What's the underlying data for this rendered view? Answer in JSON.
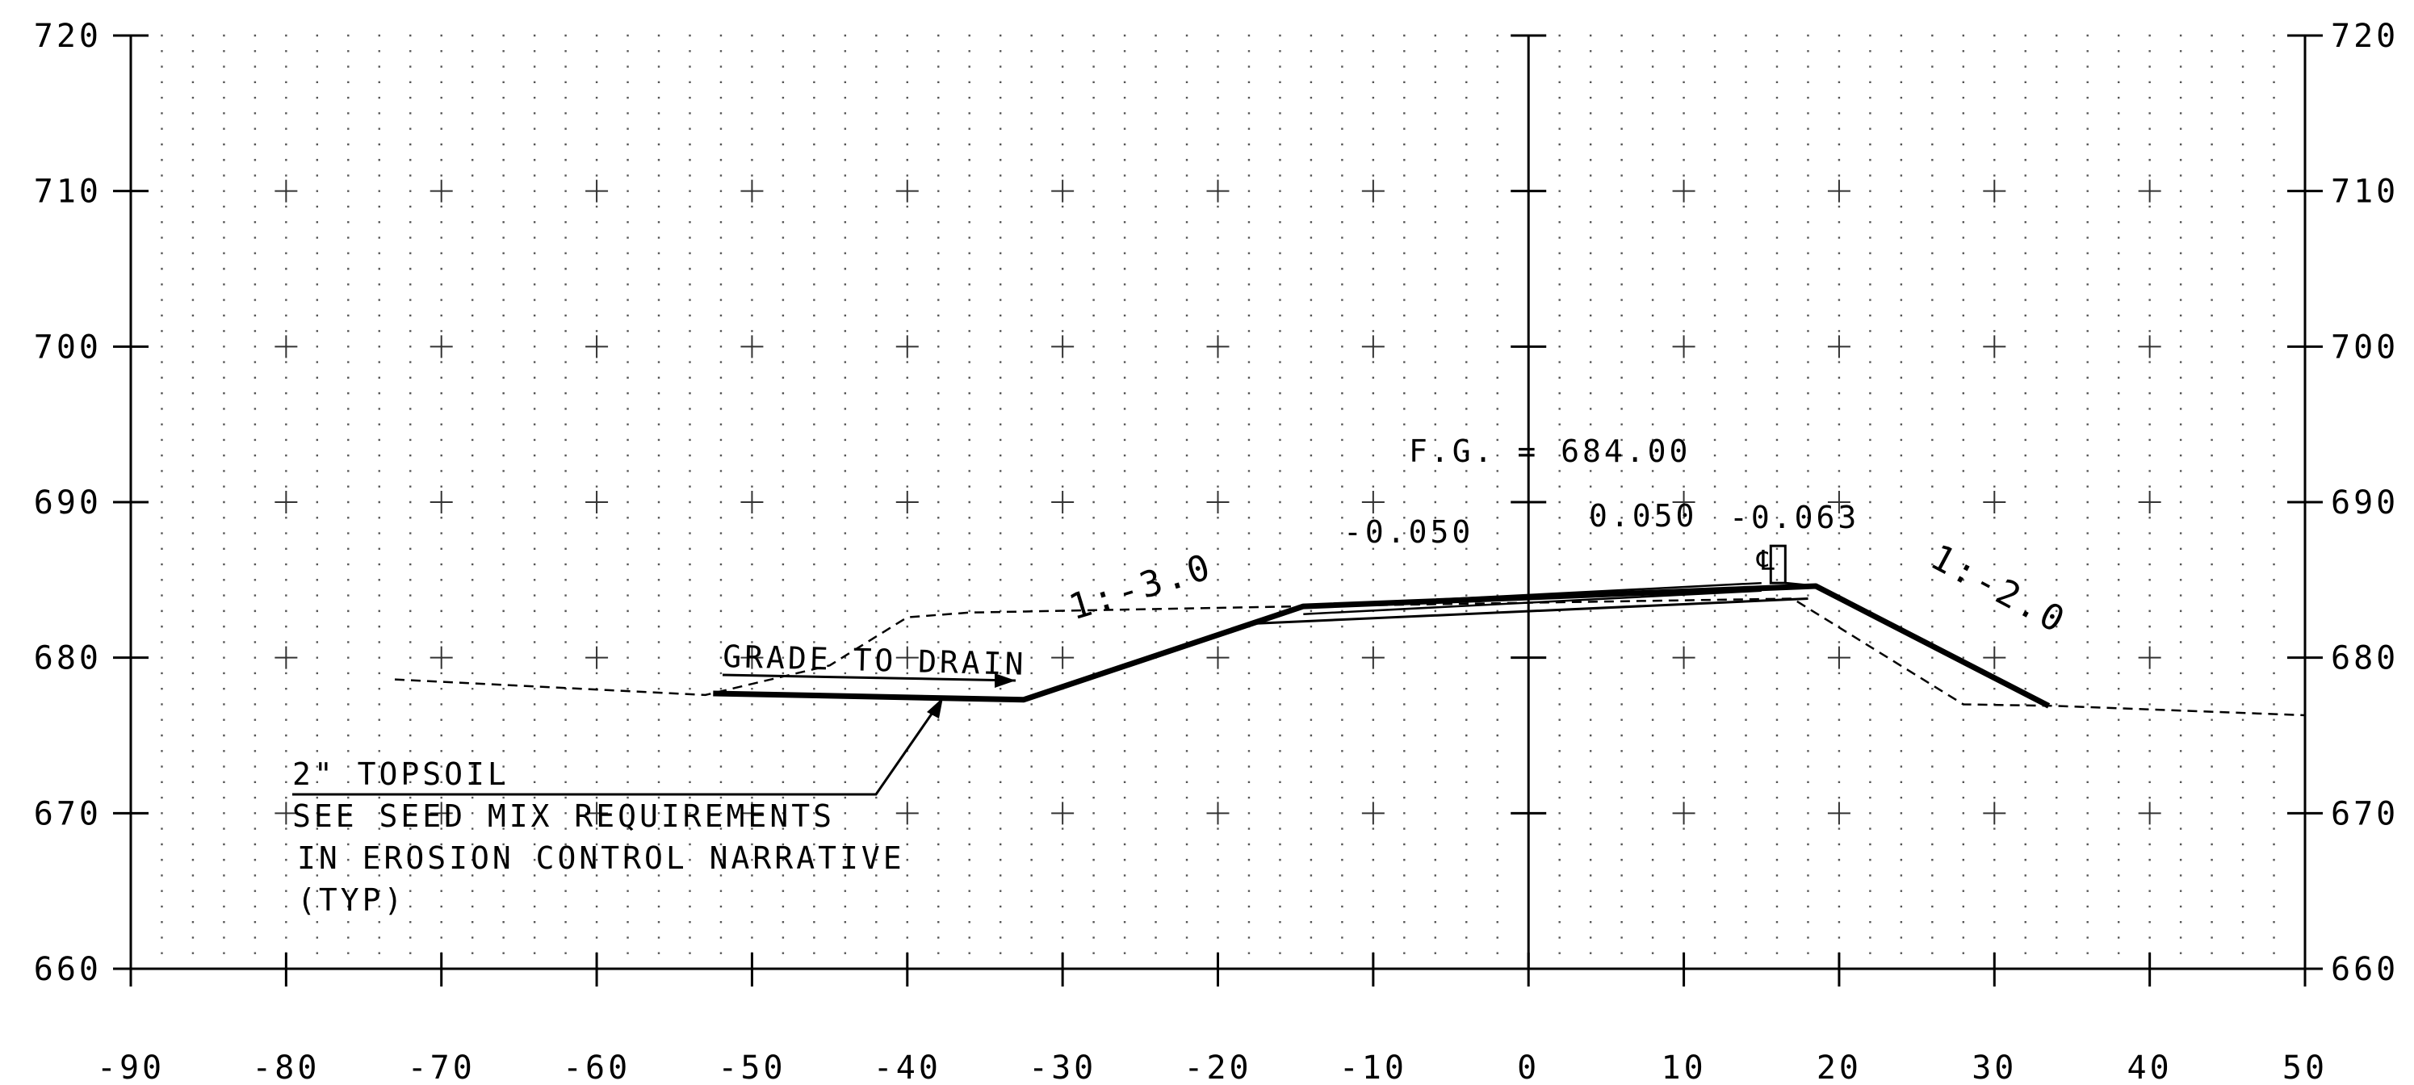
{
  "axes": {
    "x_min": -90,
    "x_max": 50,
    "x_step": 10,
    "y_min": 660,
    "y_max": 720,
    "y_step": 10,
    "x_tick_labels": [
      "-90",
      "-80",
      "-70",
      "-60",
      "-50",
      "-40",
      "-30",
      "-20",
      "-10",
      "0",
      "10",
      "20",
      "30",
      "40",
      "50"
    ],
    "y_tick_labels": [
      "660",
      "670",
      "680",
      "690",
      "700",
      "710",
      "720"
    ]
  },
  "profiles": {
    "proposed": [
      [
        -52.5,
        677.7
      ],
      [
        -32.5,
        677.3
      ],
      [
        -14.5,
        683.3
      ],
      [
        18.5,
        684.6
      ],
      [
        33.5,
        676.9
      ]
    ],
    "subgrade": [
      [
        -17.5,
        682.2
      ],
      [
        18.0,
        683.8
      ]
    ],
    "existing": [
      [
        -73,
        678.6
      ],
      [
        -53,
        677.6
      ],
      [
        -45,
        679.5
      ],
      [
        -40,
        682.6
      ],
      [
        -36,
        682.9
      ],
      [
        -15,
        683.3
      ],
      [
        17,
        683.8
      ],
      [
        28,
        677.0
      ],
      [
        34,
        676.9
      ],
      [
        50,
        676.3
      ]
    ],
    "pavement_top": [
      [
        -14.5,
        683.3
      ],
      [
        15,
        684.8
      ]
    ],
    "pavement_bottom": [
      [
        -14.5,
        682.8
      ],
      [
        15,
        684.3
      ]
    ]
  },
  "labels": {
    "fg": "F.G. = 684.00",
    "grade_left": "-0.050",
    "grade_right_1": "0.050",
    "grade_right_2": "-0.063",
    "slope_left": "1:-3.0",
    "slope_right": "1:-2.0",
    "grade_to_drain": "GRADE TO DRAIN",
    "note_line1": "2\" TOPSOIL",
    "note_line2": "SEE SEED MIX REQUIREMENTS",
    "note_line3": "IN EROSION CONTROL NARRATIVE",
    "note_line4": "(TYP)",
    "centerline": "℄"
  }
}
